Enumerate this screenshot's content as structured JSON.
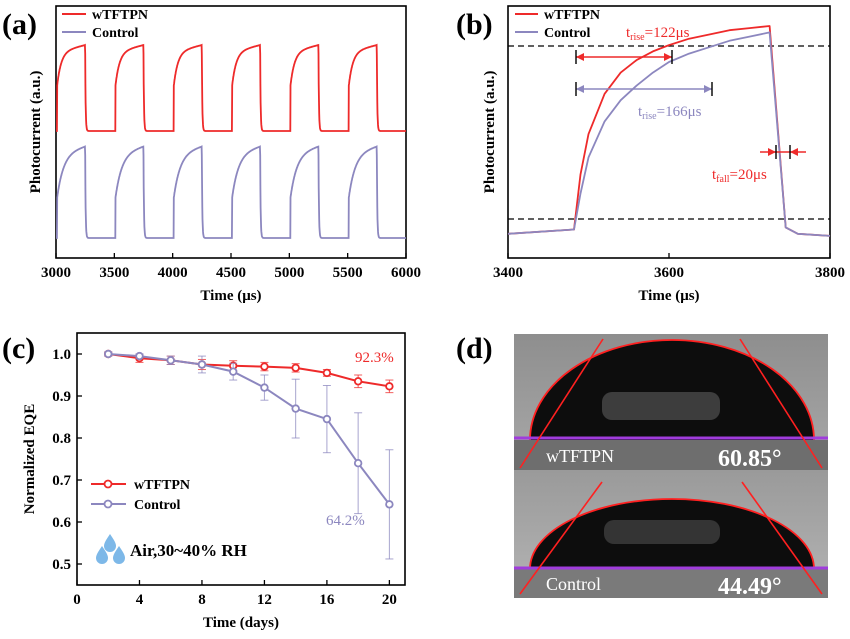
{
  "colors": {
    "red": "#ee2a2a",
    "purple": "#8c87bf",
    "drop": "#7db8e8"
  },
  "panel_labels": {
    "a": "(a)",
    "b": "(b)",
    "c": "(c)",
    "d": "(d)"
  },
  "legend": {
    "series1": "wTFTPN",
    "series2": "Control"
  },
  "annotations": {
    "rise1": "t",
    "rise1_sub": "rise",
    "rise1_val": "=122μs",
    "rise2": "t",
    "rise2_sub": "rise",
    "rise2_val": "=166μs",
    "fall": "t",
    "fall_sub": "fall",
    "fall_val": "=20μs",
    "pct1": "92.3%",
    "pct2": "64.2%",
    "humidity": "Air,30~40% RH"
  },
  "contact_angle": {
    "top_label": "wTFTPN",
    "top_angle": "60.85°",
    "bottom_label": "Control",
    "bottom_angle": "44.49°"
  },
  "chart_data": [
    {
      "type": "line",
      "panel": "(a)",
      "xlabel": "Time (μs)",
      "ylabel": "Photocurrent (a.u.)",
      "xlim": [
        3000,
        6000
      ],
      "xticks": [
        "3000",
        "3500",
        "4000",
        "4500",
        "5000",
        "5500",
        "6000"
      ],
      "series": [
        {
          "name": "wTFTPN",
          "period_us": 500,
          "on_start_us": 3010,
          "on_duration_us": 240,
          "rise_tau_us": 35
        },
        {
          "name": "Control",
          "period_us": 500,
          "on_start_us": 3010,
          "on_duration_us": 240,
          "rise_tau_us": 55
        }
      ]
    },
    {
      "type": "line",
      "panel": "(b)",
      "xlabel": "Time (μs)",
      "ylabel": "Photocurrent (a.u.)",
      "xlim": [
        3400,
        3800
      ],
      "xticks": [
        "3400",
        "3600",
        "3800"
      ],
      "series": [
        {
          "name": "wTFTPN",
          "x": [
            3400,
            3482,
            3490,
            3500,
            3520,
            3540,
            3560,
            3580,
            3600,
            3625,
            3650,
            3675,
            3700,
            3725,
            3745,
            3760,
            3800
          ],
          "y": [
            0.02,
            0.04,
            0.3,
            0.49,
            0.68,
            0.78,
            0.84,
            0.88,
            0.91,
            0.94,
            0.96,
            0.98,
            0.99,
            1.0,
            0.05,
            0.02,
            0.01
          ]
        },
        {
          "name": "Control",
          "x": [
            3400,
            3482,
            3490,
            3500,
            3520,
            3540,
            3560,
            3580,
            3600,
            3625,
            3650,
            3675,
            3700,
            3725,
            3745,
            3760,
            3800
          ],
          "y": [
            0.02,
            0.04,
            0.21,
            0.38,
            0.55,
            0.65,
            0.72,
            0.78,
            0.83,
            0.87,
            0.9,
            0.93,
            0.95,
            0.97,
            0.05,
            0.02,
            0.01
          ]
        }
      ]
    },
    {
      "type": "line",
      "panel": "(c)",
      "xlabel": "Time (days)",
      "ylabel": "Normalized EQE",
      "xlim": [
        0,
        21
      ],
      "ylim": [
        0.45,
        1.05
      ],
      "xticks": [
        "0",
        "4",
        "8",
        "12",
        "16",
        "20"
      ],
      "yticks": [
        "0.5",
        "0.6",
        "0.7",
        "0.8",
        "0.9",
        "1.0"
      ],
      "series": [
        {
          "name": "wTFTPN",
          "x": [
            2,
            4,
            6,
            8,
            10,
            12,
            14,
            16,
            18,
            20
          ],
          "y": [
            1.0,
            0.99,
            0.985,
            0.975,
            0.972,
            0.97,
            0.967,
            0.955,
            0.935,
            0.923
          ],
          "err": [
            0.005,
            0.01,
            0.01,
            0.012,
            0.012,
            0.01,
            0.01,
            0.008,
            0.015,
            0.015
          ]
        },
        {
          "name": "Control",
          "x": [
            2,
            4,
            6,
            8,
            10,
            12,
            14,
            16,
            18,
            20
          ],
          "y": [
            1.0,
            0.995,
            0.985,
            0.975,
            0.958,
            0.92,
            0.87,
            0.845,
            0.74,
            0.642
          ],
          "err": [
            0.005,
            0.005,
            0.01,
            0.02,
            0.02,
            0.03,
            0.07,
            0.08,
            0.12,
            0.13
          ]
        }
      ]
    }
  ]
}
